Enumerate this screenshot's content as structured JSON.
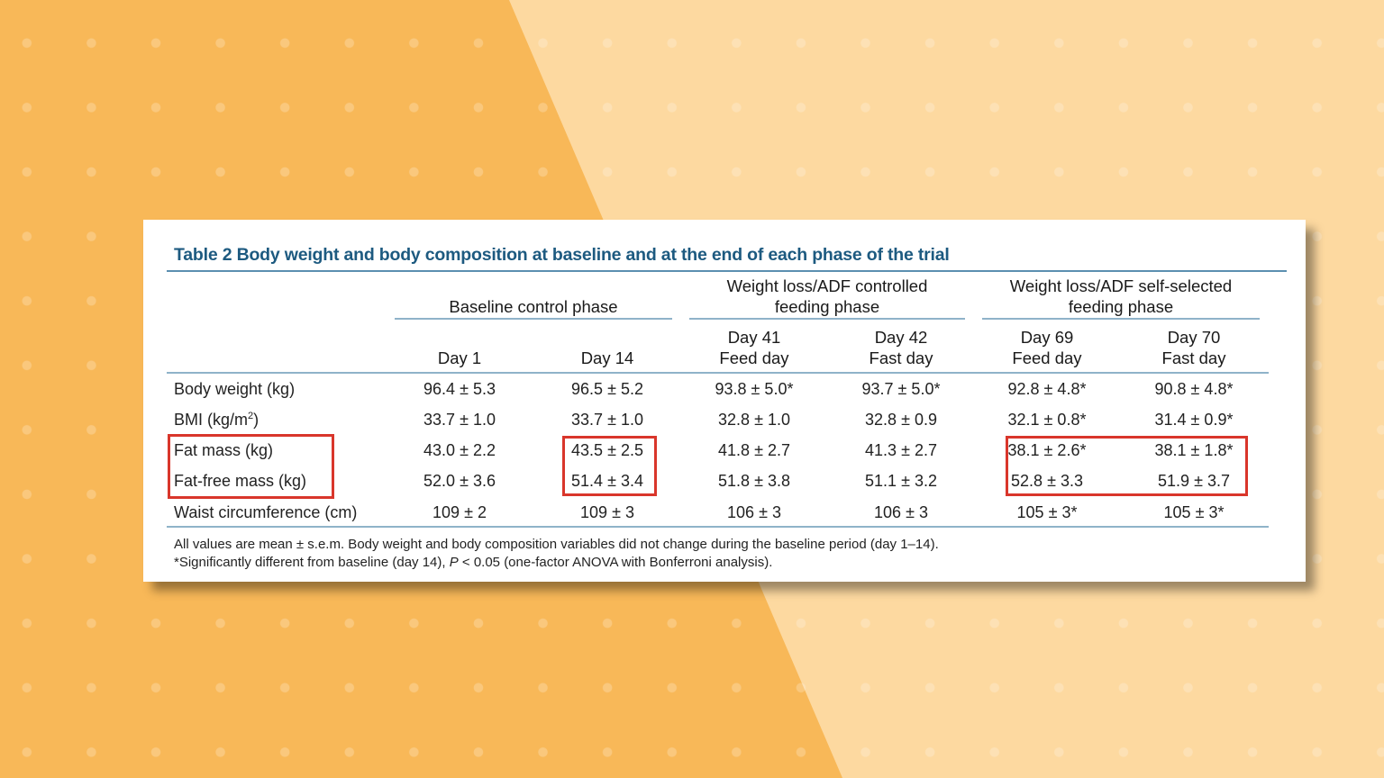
{
  "colors": {
    "accent": "#1d5a80",
    "highlight": "#d9362b",
    "bg_dark": "#f8b858",
    "bg_light": "#fdd9a0"
  },
  "table": {
    "title": "Table 2  Body weight and body composition at baseline and at the end of each phase of the trial",
    "groups": [
      {
        "line1": "Baseline control phase",
        "line2": ""
      },
      {
        "line1": "Weight loss/ADF controlled",
        "line2": "feeding phase"
      },
      {
        "line1": "Weight loss/ADF self-selected",
        "line2": "feeding phase"
      }
    ],
    "columns": [
      {
        "line1": "",
        "line2": "Day 1"
      },
      {
        "line1": "",
        "line2": "Day 14"
      },
      {
        "line1": "Day 41",
        "line2": "Feed day"
      },
      {
        "line1": "Day 42",
        "line2": "Fast day"
      },
      {
        "line1": "Day 69",
        "line2": "Feed day"
      },
      {
        "line1": "Day 70",
        "line2": "Fast day"
      }
    ],
    "rows": [
      {
        "label": "Body weight (kg)",
        "cells": [
          "96.4 ± 5.3",
          "96.5 ± 5.2",
          "93.8 ± 5.0*",
          "93.7 ± 5.0*",
          "92.8 ± 4.8*",
          "90.8 ± 4.8*"
        ]
      },
      {
        "label": "BMI (kg/m",
        "label_sup": "2",
        "label_tail": ")",
        "cells": [
          "33.7 ± 1.0",
          "33.7 ± 1.0",
          "32.8 ± 1.0",
          "32.8 ± 0.9",
          "32.1 ± 0.8*",
          "31.4 ± 0.9*"
        ]
      },
      {
        "label": "Fat mass (kg)",
        "cells": [
          "43.0 ± 2.2",
          "43.5 ± 2.5",
          "41.8 ± 2.7",
          "41.3 ± 2.7",
          "38.1 ± 2.6*",
          "38.1 ± 1.8*"
        ]
      },
      {
        "label": "Fat-free mass (kg)",
        "cells": [
          "52.0 ± 3.6",
          "51.4 ± 3.4",
          "51.8 ± 3.8",
          "51.1 ± 3.2",
          "52.8 ± 3.3",
          "51.9 ± 3.7"
        ]
      },
      {
        "label": "Waist circumference (cm)",
        "cells": [
          "109 ± 2",
          "109 ± 3",
          "106 ± 3",
          "106 ± 3",
          "105 ± 3*",
          "105 ± 3*"
        ]
      }
    ],
    "footnote1": "All values are mean ± s.e.m. Body weight and body composition variables did not change during the baseline period (day 1–14).",
    "footnote2_a": "*Significantly different from baseline (day 14), ",
    "footnote2_p": "P",
    "footnote2_b": " < 0.05 (one-factor ANOVA with Bonferroni analysis)."
  }
}
